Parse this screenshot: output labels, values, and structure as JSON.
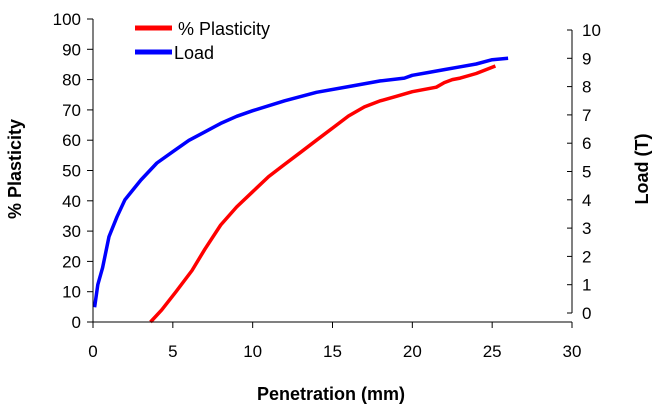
{
  "chart_data": {
    "type": "line",
    "xlabel": "Penetration (mm)",
    "ylabel": "% Plasticity",
    "y2label": "Load (T)",
    "xlim": [
      0,
      30
    ],
    "ylim": [
      0,
      100
    ],
    "y2lim": [
      0,
      10
    ],
    "xticks": [
      0,
      5,
      10,
      15,
      20,
      25,
      30
    ],
    "yticks": [
      0,
      10,
      20,
      30,
      40,
      50,
      60,
      70,
      80,
      90,
      100
    ],
    "y2ticks": [
      0,
      1,
      2,
      3,
      4,
      5,
      6,
      7,
      8,
      9,
      10
    ],
    "grid": false,
    "legend_position": "top-left",
    "series": [
      {
        "name": "% Plasticity",
        "axis": "left",
        "color": "#ff0000",
        "x": [
          3.6,
          4.3,
          5.2,
          6.2,
          7.0,
          8.0,
          9.0,
          10.0,
          11.0,
          12.0,
          13.0,
          14.0,
          15.0,
          16.0,
          17.0,
          18.0,
          19.0,
          20.0,
          21.0,
          21.5,
          22.0,
          22.5,
          23.0,
          24.0,
          25.2
        ],
        "y": [
          0,
          4,
          10,
          17,
          24,
          32,
          38,
          43,
          48,
          52,
          56,
          60,
          64,
          68,
          71,
          73,
          74.5,
          76,
          77,
          77.5,
          79,
          80,
          80.5,
          82,
          84.5
        ]
      },
      {
        "name": "Load",
        "axis": "right",
        "color": "#0000ff",
        "x": [
          0.1,
          0.3,
          0.6,
          1.0,
          1.5,
          2.0,
          3.0,
          4.0,
          5.0,
          6.0,
          7.0,
          8.0,
          9.0,
          10.0,
          12.0,
          14.0,
          16.0,
          18.0,
          19.5,
          20.0,
          21.0,
          22.0,
          23.0,
          24.0,
          25.0,
          26.0
        ],
        "y": [
          0.2,
          1.0,
          1.6,
          2.7,
          3.4,
          4.0,
          4.7,
          5.3,
          5.7,
          6.1,
          6.4,
          6.7,
          6.95,
          7.15,
          7.5,
          7.8,
          8.0,
          8.2,
          8.3,
          8.4,
          8.5,
          8.6,
          8.7,
          8.8,
          8.95,
          9.0
        ]
      }
    ]
  }
}
